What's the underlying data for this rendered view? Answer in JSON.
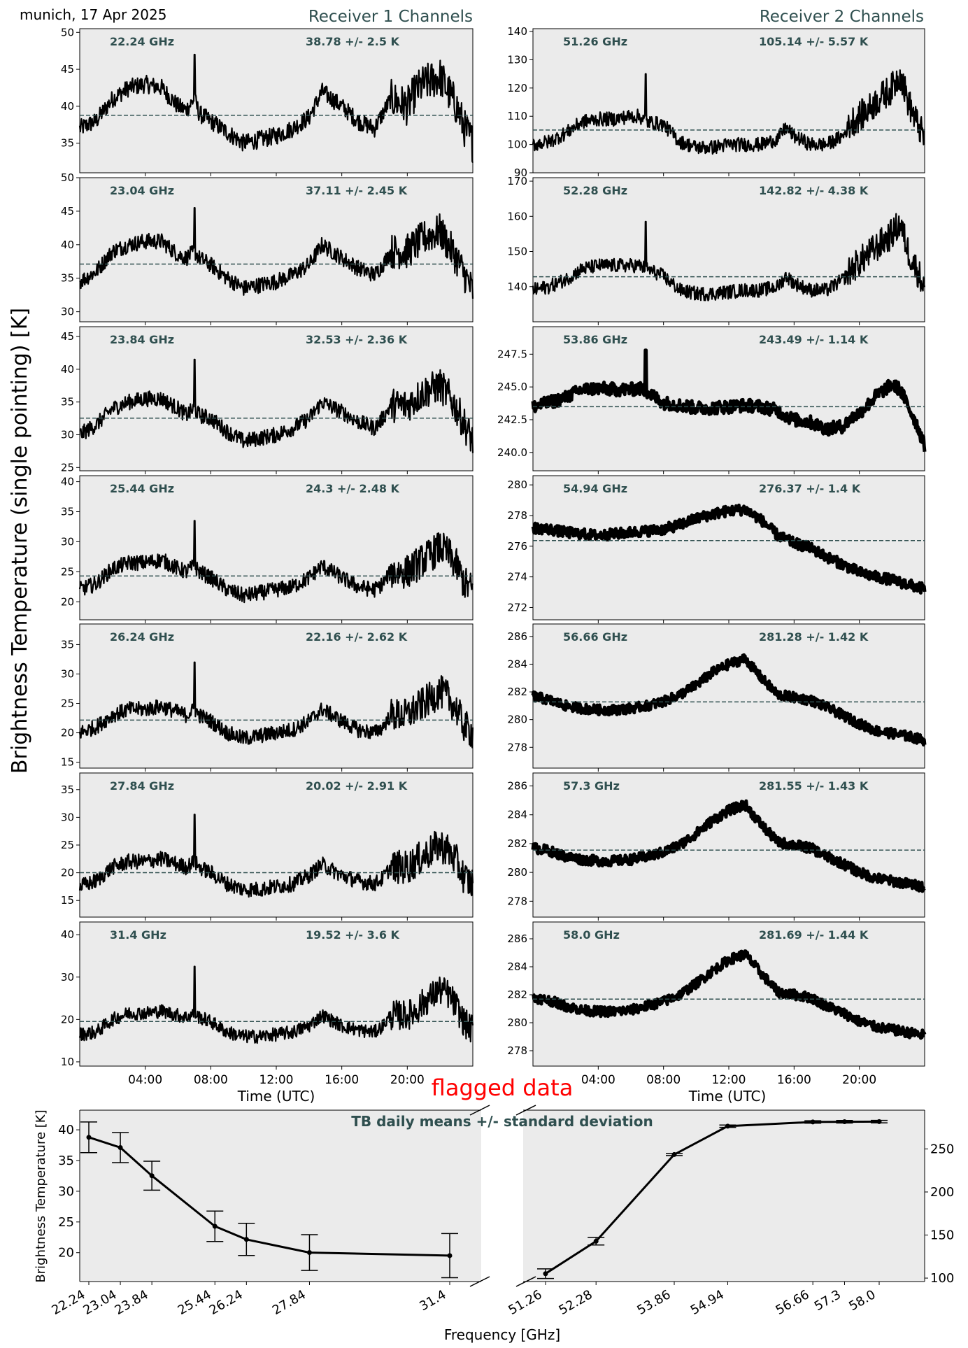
{
  "header": {
    "location_date": "munich, 17 Apr 2025",
    "receiver1_title": "Receiver 1 Channels",
    "receiver2_title": "Receiver 2 Channels",
    "ylabel": "Brightness Temperature (single pointing) [K]",
    "time_xlabel": "Time (UTC)",
    "time_ticks": [
      "04:00",
      "08:00",
      "12:00",
      "16:00",
      "20:00"
    ],
    "flag_text": "flagged data"
  },
  "colors": {
    "panel_bg": "#ebebeb",
    "trace": "#000000",
    "mean_line": "#2f4f4f",
    "title_text": "#2f4f4f",
    "flag_text": "#ff0000"
  },
  "chart_data": [
    {
      "type": "line",
      "receiver": 1,
      "freq_label": "22.24 GHz",
      "stat_label": "38.78 +/- 2.5 K",
      "mean": 38.78,
      "ylim": [
        31,
        50.5
      ],
      "yticks": [
        35,
        40,
        45,
        50
      ],
      "x": [
        0,
        1,
        2,
        3,
        4,
        5,
        6,
        6.5,
        7,
        7.3,
        8,
        9,
        10,
        11,
        12,
        13,
        14,
        14.8,
        16,
        17,
        18,
        18.5,
        19,
        20,
        20.5,
        21,
        22,
        22.5,
        23,
        23.5,
        24
      ],
      "y": [
        37,
        38,
        41,
        42.5,
        43,
        42.5,
        40,
        39.5,
        41,
        39,
        38,
        36.5,
        35,
        35.5,
        36,
        37,
        38.5,
        42,
        40,
        38,
        37,
        39,
        41,
        40,
        42,
        43,
        44,
        42,
        40,
        37,
        35
      ],
      "spike": {
        "x": 7.0,
        "y": 47
      },
      "noise": 1.2
    },
    {
      "type": "line",
      "receiver": 1,
      "freq_label": "23.04 GHz",
      "stat_label": "37.11 +/- 2.45 K",
      "mean": 37.11,
      "ylim": [
        28.5,
        50
      ],
      "yticks": [
        30,
        35,
        40,
        45,
        50
      ],
      "x": [
        0,
        1,
        2,
        3,
        4,
        5,
        6,
        6.5,
        7,
        7.3,
        8,
        9,
        10,
        11,
        12,
        13,
        14,
        14.8,
        16,
        17,
        18,
        18.5,
        19,
        20,
        20.5,
        21,
        22,
        22.5,
        23,
        23.5,
        24
      ],
      "y": [
        34.5,
        36,
        39,
        40,
        40.5,
        40.5,
        38.5,
        38,
        39,
        38,
        37,
        35,
        33.5,
        34,
        34.5,
        35.5,
        37,
        40,
        38,
        36.5,
        35.5,
        37,
        39,
        39,
        40,
        41,
        42,
        40,
        38,
        35.5,
        33
      ],
      "spike": {
        "x": 7.0,
        "y": 45.5
      },
      "noise": 1.2
    },
    {
      "type": "line",
      "receiver": 1,
      "freq_label": "23.84 GHz",
      "stat_label": "32.53 +/- 2.36 K",
      "mean": 32.53,
      "ylim": [
        24.5,
        46.5
      ],
      "yticks": [
        25,
        30,
        35,
        40,
        45
      ],
      "x": [
        0,
        1,
        2,
        3,
        4,
        5,
        6,
        6.5,
        7,
        7.3,
        8,
        9,
        10,
        11,
        12,
        13,
        14,
        14.8,
        16,
        17,
        18,
        18.5,
        19,
        20,
        20.5,
        21,
        22,
        22.5,
        23,
        23.5,
        24
      ],
      "y": [
        30,
        31.5,
        34,
        35,
        35.5,
        35.5,
        34,
        33,
        34,
        33,
        32.5,
        30.5,
        29,
        29.5,
        30,
        31,
        32.5,
        35,
        33.5,
        32,
        31,
        32.5,
        34.5,
        34.5,
        35.5,
        36.5,
        37.5,
        36,
        34,
        31.5,
        29
      ],
      "spike": {
        "x": 7.0,
        "y": 41.5
      },
      "noise": 1.2
    },
    {
      "type": "line",
      "receiver": 1,
      "freq_label": "25.44 GHz",
      "stat_label": "24.3 +/- 2.48 K",
      "mean": 24.3,
      "ylim": [
        17,
        41
      ],
      "yticks": [
        20,
        25,
        30,
        35,
        40
      ],
      "x": [
        0,
        1,
        2,
        3,
        4,
        5,
        6,
        6.5,
        7,
        7.3,
        8,
        9,
        10,
        11,
        12,
        13,
        14,
        14.8,
        16,
        17,
        18,
        18.5,
        19,
        20,
        20.5,
        21,
        22,
        22.5,
        23,
        23.5,
        24
      ],
      "y": [
        22,
        23,
        25.5,
        26.5,
        26.5,
        27,
        25.5,
        25,
        26,
        25,
        24,
        22,
        21,
        21.5,
        22,
        22.5,
        24,
        26,
        24,
        22.5,
        22,
        23,
        25,
        25,
        26,
        27,
        29,
        28,
        26,
        23,
        22
      ],
      "spike": {
        "x": 7.0,
        "y": 33.5
      },
      "noise": 1.3
    },
    {
      "type": "line",
      "receiver": 1,
      "freq_label": "26.24 GHz",
      "stat_label": "22.16 +/- 2.62 K",
      "mean": 22.16,
      "ylim": [
        14,
        38.5
      ],
      "yticks": [
        15,
        20,
        25,
        30,
        35
      ],
      "x": [
        0,
        1,
        2,
        3,
        4,
        5,
        6,
        6.5,
        7,
        7.3,
        8,
        9,
        10,
        11,
        12,
        13,
        14,
        14.8,
        16,
        17,
        18,
        18.5,
        19,
        20,
        20.5,
        21,
        22,
        22.5,
        23,
        23.5,
        24
      ],
      "y": [
        20,
        21,
        23,
        24,
        24,
        24.5,
        23.5,
        23,
        24,
        23,
        22,
        20,
        19,
        19.5,
        20,
        20.5,
        22,
        24,
        22,
        20.5,
        20,
        21,
        23,
        23,
        24,
        25,
        27,
        26,
        24,
        21,
        20
      ],
      "spike": {
        "x": 7.0,
        "y": 32
      },
      "noise": 1.3
    },
    {
      "type": "line",
      "receiver": 1,
      "freq_label": "27.84 GHz",
      "stat_label": "20.02 +/- 2.91 K",
      "mean": 20.02,
      "ylim": [
        12,
        38
      ],
      "yticks": [
        15,
        20,
        25,
        30,
        35
      ],
      "x": [
        0,
        1,
        2,
        3,
        4,
        5,
        6,
        6.5,
        7,
        7.3,
        8,
        9,
        10,
        11,
        12,
        13,
        14,
        14.8,
        16,
        17,
        18,
        18.5,
        19,
        20,
        20.5,
        21,
        22,
        22.5,
        23,
        23.5,
        24
      ],
      "y": [
        17.5,
        18.5,
        21,
        22,
        22,
        22.5,
        21.5,
        21,
        22,
        21,
        20,
        18,
        17,
        17,
        17.5,
        18,
        19.5,
        21.5,
        19.5,
        18.5,
        18,
        19,
        21,
        21,
        22,
        23,
        25,
        24,
        22,
        19,
        18
      ],
      "spike": {
        "x": 7.0,
        "y": 30.5
      },
      "noise": 1.4
    },
    {
      "type": "line",
      "receiver": 1,
      "freq_label": "31.4 GHz",
      "stat_label": "19.52 +/- 3.6 K",
      "mean": 19.52,
      "ylim": [
        9,
        43
      ],
      "yticks": [
        10,
        20,
        30,
        40
      ],
      "x": [
        0,
        1,
        2,
        3,
        4,
        5,
        6,
        6.5,
        7,
        7.3,
        8,
        9,
        10,
        11,
        12,
        13,
        14,
        14.8,
        16,
        17,
        18,
        18.5,
        19,
        20,
        20.5,
        21,
        22,
        22.5,
        23,
        23.5,
        24
      ],
      "y": [
        16.5,
        17,
        20,
        21.5,
        21.5,
        22,
        21,
        20.5,
        21.5,
        20.5,
        19.5,
        17,
        16,
        16,
        16.5,
        17,
        18.5,
        21,
        18.5,
        17.5,
        17,
        18.5,
        21,
        21,
        22,
        24,
        27,
        26,
        23,
        19,
        17.5
      ],
      "spike": {
        "x": 7.0,
        "y": 32.5
      },
      "noise": 1.6
    },
    {
      "type": "line",
      "receiver": 2,
      "freq_label": "51.26 GHz",
      "stat_label": "105.14 +/- 5.57 K",
      "mean": 105.14,
      "ylim": [
        90,
        141
      ],
      "yticks": [
        90,
        100,
        110,
        120,
        130,
        140
      ],
      "x": [
        0,
        1,
        2,
        3,
        4,
        5,
        6,
        6.5,
        7,
        8,
        9,
        10,
        11,
        12,
        13,
        14,
        15,
        15.5,
        16,
        17,
        18,
        19,
        19.5,
        20,
        20.5,
        21,
        22,
        22.5,
        23,
        23.5,
        24
      ],
      "y": [
        100,
        101,
        104,
        108,
        109,
        109,
        110,
        110,
        108,
        107,
        101,
        99,
        99,
        100,
        100,
        100,
        102,
        106,
        103,
        100,
        100,
        103,
        108,
        110,
        112,
        115,
        120,
        125,
        115,
        108,
        102
      ],
      "spike": {
        "x": 6.9,
        "y": 125
      },
      "noise": 2.5
    },
    {
      "type": "line",
      "receiver": 2,
      "freq_label": "52.28 GHz",
      "stat_label": "142.82 +/- 4.38 K",
      "mean": 142.82,
      "ylim": [
        130,
        171
      ],
      "yticks": [
        140,
        150,
        160,
        170
      ],
      "x": [
        0,
        1,
        2,
        3,
        4,
        5,
        6,
        6.5,
        7,
        8,
        9,
        10,
        11,
        12,
        13,
        14,
        15,
        15.5,
        16,
        17,
        18,
        19,
        19.5,
        20,
        20.5,
        21,
        22,
        22.5,
        23,
        23.5,
        24
      ],
      "y": [
        139,
        140,
        142,
        145,
        146,
        146,
        146,
        146,
        145,
        143,
        139,
        138,
        138,
        138.5,
        139,
        139,
        140,
        143,
        141,
        139,
        139,
        142,
        145,
        147,
        149,
        151,
        155,
        158,
        150,
        145,
        140
      ],
      "spike": {
        "x": 6.9,
        "y": 158.5
      },
      "noise": 2.0
    },
    {
      "type": "line",
      "receiver": 2,
      "freq_label": "53.86 GHz",
      "stat_label": "243.49 +/- 1.14 K",
      "mean": 243.49,
      "ylim": [
        238.6,
        249.6
      ],
      "yticks": [
        240.0,
        242.5,
        245.0,
        247.5
      ],
      "x": [
        0,
        1,
        2,
        3,
        4,
        5,
        6,
        6.5,
        7,
        8,
        9,
        10,
        11,
        12,
        13,
        14,
        15,
        15.5,
        16,
        17,
        18,
        19,
        19.5,
        20,
        20.5,
        21,
        22,
        22.5,
        23,
        23.5,
        24
      ],
      "y": [
        243.5,
        243.8,
        244.2,
        244.8,
        244.9,
        244.8,
        244.8,
        244.9,
        244.6,
        243.8,
        243.6,
        243.4,
        243.4,
        243.5,
        243.6,
        243.5,
        243.2,
        242.8,
        242.5,
        242.3,
        241.8,
        242.0,
        242.6,
        243.0,
        243.6,
        244.3,
        245.2,
        244.8,
        243.5,
        242.2,
        240.5
      ],
      "spike": {
        "x": 6.9,
        "y": 247.8
      },
      "noise": 0.5
    },
    {
      "type": "line",
      "receiver": 2,
      "freq_label": "54.94 GHz",
      "stat_label": "276.37 +/- 1.4 K",
      "mean": 276.37,
      "ylim": [
        271.2,
        280.6
      ],
      "yticks": [
        272,
        274,
        276,
        278,
        280
      ],
      "x": [
        0,
        1,
        2,
        3,
        4,
        5,
        6,
        7,
        8,
        9,
        10,
        11,
        12,
        13,
        14,
        15,
        16,
        17,
        18,
        19,
        20,
        21,
        22,
        23,
        24
      ],
      "y": [
        277.2,
        277.1,
        276.9,
        276.8,
        276.7,
        276.8,
        276.9,
        277.0,
        277.1,
        277.4,
        277.8,
        278.1,
        278.3,
        278.4,
        277.7,
        276.7,
        276.2,
        275.9,
        275.3,
        274.8,
        274.3,
        274.0,
        273.8,
        273.5,
        273.2
      ],
      "spike": null,
      "noise": 0.35
    },
    {
      "type": "line",
      "receiver": 2,
      "freq_label": "56.66 GHz",
      "stat_label": "281.28 +/- 1.42 K",
      "mean": 281.28,
      "ylim": [
        276.5,
        286.9
      ],
      "yticks": [
        278,
        280,
        282,
        284,
        286
      ],
      "x": [
        0,
        1,
        2,
        3,
        4,
        5,
        6,
        7,
        8,
        9,
        10,
        11,
        12,
        13,
        14,
        15,
        16,
        17,
        18,
        19,
        20,
        21,
        22,
        23,
        24
      ],
      "y": [
        281.7,
        281.4,
        281.0,
        280.8,
        280.7,
        280.7,
        280.8,
        281.0,
        281.3,
        281.8,
        282.5,
        283.4,
        284.0,
        284.4,
        283.0,
        281.8,
        281.6,
        281.4,
        280.9,
        280.3,
        279.7,
        279.2,
        279.0,
        278.8,
        278.5
      ],
      "spike": null,
      "noise": 0.35
    },
    {
      "type": "line",
      "receiver": 2,
      "freq_label": "57.3 GHz",
      "stat_label": "281.55 +/- 1.43 K",
      "mean": 281.55,
      "ylim": [
        276.9,
        286.9
      ],
      "yticks": [
        278,
        280,
        282,
        284,
        286
      ],
      "x": [
        0,
        1,
        2,
        3,
        4,
        5,
        6,
        7,
        8,
        9,
        10,
        11,
        12,
        13,
        14,
        15,
        16,
        17,
        18,
        19,
        20,
        21,
        22,
        23,
        24
      ],
      "y": [
        281.7,
        281.5,
        281.1,
        280.9,
        280.8,
        280.8,
        280.9,
        281.1,
        281.4,
        281.9,
        282.7,
        283.6,
        284.3,
        284.7,
        283.3,
        282.1,
        281.9,
        281.7,
        281.1,
        280.6,
        280.0,
        279.6,
        279.4,
        279.2,
        279.0
      ],
      "spike": null,
      "noise": 0.35
    },
    {
      "type": "line",
      "receiver": 2,
      "freq_label": "58.0 GHz",
      "stat_label": "281.69 +/- 1.44 K",
      "mean": 281.69,
      "ylim": [
        276.9,
        287.2
      ],
      "yticks": [
        278,
        280,
        282,
        284,
        286
      ],
      "x": [
        0,
        1,
        2,
        3,
        4,
        5,
        6,
        7,
        8,
        9,
        10,
        11,
        12,
        13,
        14,
        15,
        16,
        17,
        18,
        19,
        20,
        21,
        22,
        23,
        24
      ],
      "y": [
        281.8,
        281.6,
        281.2,
        280.9,
        280.8,
        280.8,
        280.9,
        281.2,
        281.5,
        282.0,
        282.8,
        283.7,
        284.5,
        284.9,
        283.5,
        282.2,
        282.0,
        281.8,
        281.2,
        280.7,
        280.1,
        279.7,
        279.5,
        279.3,
        279.1
      ],
      "spike": null,
      "noise": 0.35
    },
    {
      "type": "line",
      "title": "TB daily means +/- standard deviation",
      "xlabel": "Frequency [GHz]",
      "ylabel": "Brightness Temperature [K]",
      "receiver1": {
        "freqs": [
          22.24,
          23.04,
          23.84,
          25.44,
          26.24,
          27.84,
          31.4
        ],
        "tick_labels": [
          "22.24",
          "23.04",
          "23.84",
          "25.44",
          "26.24",
          "27.84",
          "31.4"
        ],
        "means": [
          38.78,
          37.11,
          32.53,
          24.3,
          22.16,
          20.02,
          19.52
        ],
        "stds": [
          2.5,
          2.45,
          2.36,
          2.48,
          2.62,
          2.91,
          3.6
        ],
        "ylim": [
          15.3,
          43.2
        ],
        "yticks": [
          20,
          25,
          30,
          35,
          40
        ]
      },
      "receiver2": {
        "freqs": [
          51.26,
          52.28,
          53.86,
          54.94,
          56.66,
          57.3,
          58.0
        ],
        "tick_labels": [
          "51.26",
          "52.28",
          "53.86",
          "54.94",
          "56.66",
          "57.3",
          "58.0"
        ],
        "means": [
          105.14,
          142.82,
          243.49,
          276.37,
          281.28,
          281.55,
          281.69
        ],
        "stds": [
          5.57,
          4.38,
          1.14,
          1.4,
          1.42,
          1.43,
          1.44
        ],
        "ylim": [
          96,
          295
        ],
        "yticks": [
          100,
          150,
          200,
          250
        ]
      }
    }
  ]
}
